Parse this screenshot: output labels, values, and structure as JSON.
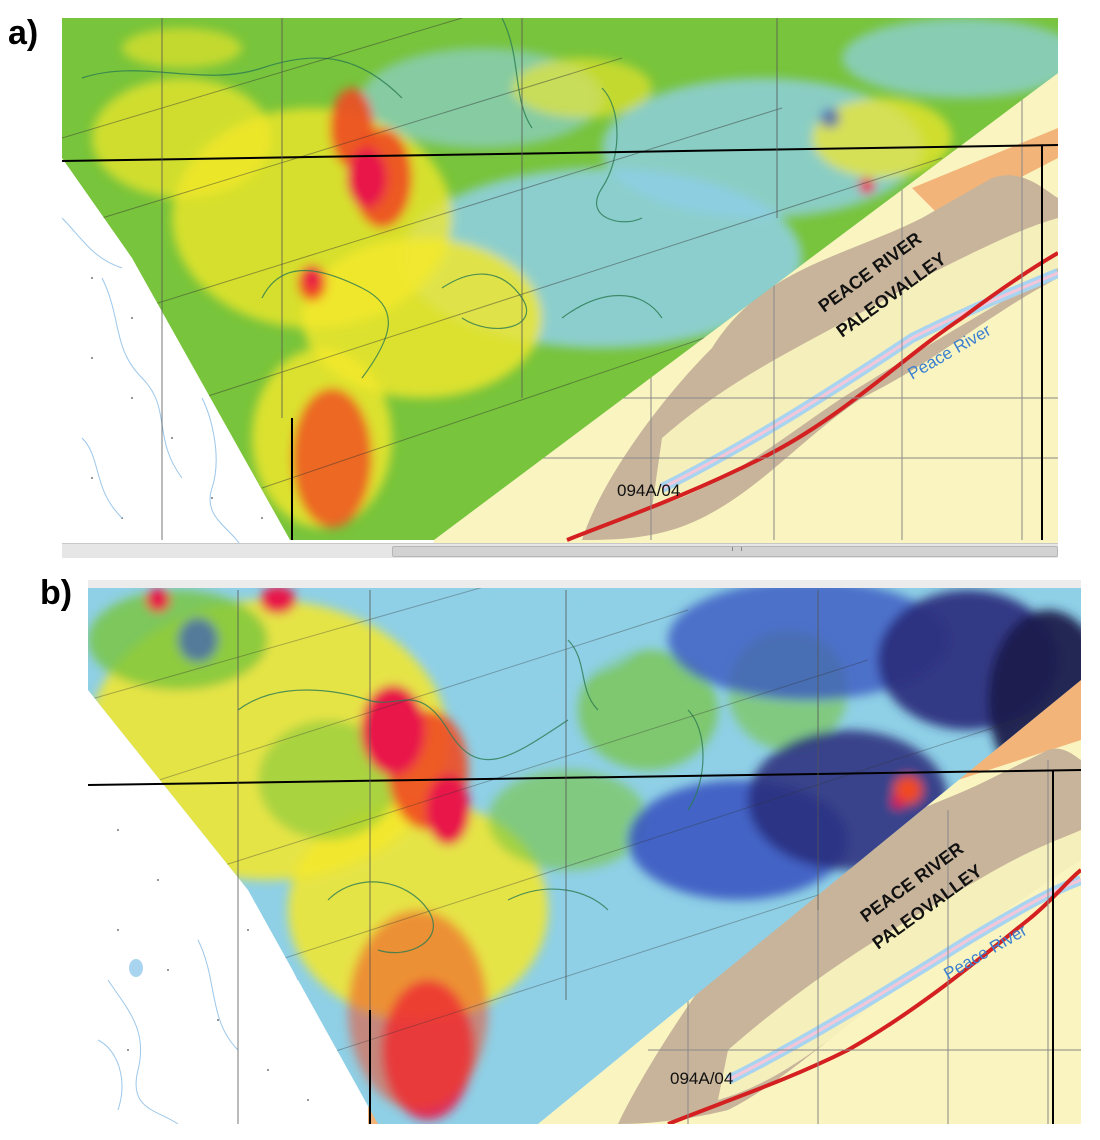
{
  "panels": [
    {
      "label": "a)",
      "paleovalley_line1": "PEACE RIVER",
      "paleovalley_line2": "PALEOVALLEY",
      "river_name": "Peace River",
      "map_sheet": "094A/04"
    },
    {
      "label": "b)",
      "paleovalley_line1": "PEACE RIVER",
      "paleovalley_line2": "PALEOVALLEY",
      "river_name": "Peace River",
      "map_sheet": "094A/04"
    }
  ],
  "colors": {
    "anomaly_high": "#e8184a",
    "anomaly_mid_high": "#f04a24",
    "anomaly_mid": "#f5e82a",
    "anomaly_mid_low": "#78c43c",
    "anomaly_low": "#8fd0e6",
    "anomaly_lower": "#3c58c2",
    "anomaly_lowest": "#2a2a7a",
    "valley_fill": "#faf5c0",
    "valley_slope": "#c8b49a",
    "river": "#a9d4f0",
    "highway": "#d42020",
    "grid_line": "#000000"
  }
}
